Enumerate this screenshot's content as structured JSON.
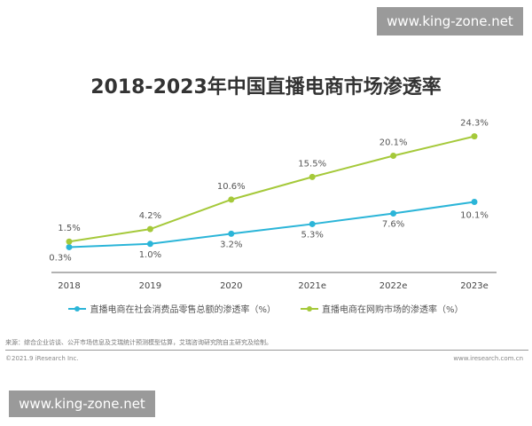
{
  "chart_data": {
    "type": "line",
    "title": "2018-2023年中国直播电商市场渗透率",
    "categories": [
      "2018",
      "2019",
      "2020",
      "2021e",
      "2022e",
      "2023e"
    ],
    "series": [
      {
        "name": "直播电商在社会消费品零售总额的渗透率（%）",
        "color": "#2bb5d8",
        "values": [
          0.3,
          1.0,
          3.2,
          5.3,
          7.6,
          10.1
        ],
        "labels": [
          "0.3%",
          "1.0%",
          "3.2%",
          "5.3%",
          "7.6%",
          "10.1%"
        ]
      },
      {
        "name": "直播电商在网购市场的渗透率（%）",
        "color": "#a5c93a",
        "values": [
          1.5,
          4.2,
          10.6,
          15.5,
          20.1,
          24.3
        ],
        "labels": [
          "1.5%",
          "4.2%",
          "10.6%",
          "15.5%",
          "20.1%",
          "24.3%"
        ]
      }
    ],
    "legend_position": "bottom",
    "grid": false
  },
  "footer": {
    "source": "来源：综合企业访谈、公开市场信息及艾瑞统计预测模型估算，艾瑞咨询研究院自主研究及绘制。",
    "copyright": "©2021.9 iResearch Inc.",
    "site": "www.iresearch.com.cn"
  },
  "watermark": {
    "text": "www.king-zone.net"
  }
}
